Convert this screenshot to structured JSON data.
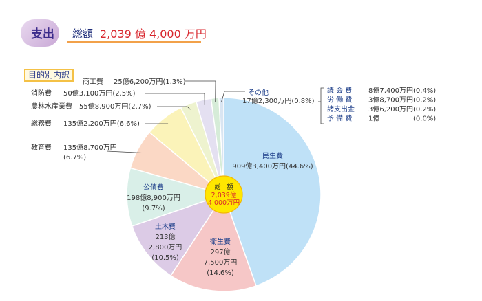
{
  "header": {
    "badge": "支出",
    "total_label": "総額",
    "total_value": "2,039 億 4,000 万円"
  },
  "section_label": "目的別内訳",
  "center_label": {
    "title": "総　額",
    "value_line1": "2,039億",
    "value_line2": "4,000万円"
  },
  "chart_data": {
    "type": "pie",
    "unit": "%",
    "slices": [
      {
        "name": "民生費",
        "value": 44.6,
        "amount": "909億3,400万円",
        "percent_text": "(44.6%)",
        "color": "#bfe1f7"
      },
      {
        "name": "衛生費",
        "value": 14.6,
        "amount": "297億7,500万円",
        "percent_text": "(14.6%)",
        "color": "#f6c7c7"
      },
      {
        "name": "土木費",
        "value": 10.5,
        "amount": "213億2,800万円",
        "percent_text": "(10.5%)",
        "color": "#dccbe6"
      },
      {
        "name": "公債費",
        "value": 9.7,
        "amount": "198億8,900万円",
        "percent_text": "(9.7%)",
        "color": "#d9efe8"
      },
      {
        "name": "教育費",
        "value": 6.7,
        "amount": "135億8,700万円",
        "percent_text": "(6.7%)",
        "color": "#fbd8c5"
      },
      {
        "name": "総務費",
        "value": 6.6,
        "amount": "135億2,200万円",
        "percent_text": "(6.6%)",
        "color": "#fbf3b9"
      },
      {
        "name": "農林水産業費",
        "value": 2.7,
        "amount": "55億8,900万円",
        "percent_text": "(2.7%)",
        "color": "#eef3cf"
      },
      {
        "name": "消防費",
        "value": 2.5,
        "amount": "50億3,100万円",
        "percent_text": "(2.5%)",
        "color": "#e4e0f1"
      },
      {
        "name": "商工費",
        "value": 1.3,
        "amount": "25億6,200万円",
        "percent_text": "(1.3%)",
        "color": "#d6ecd8"
      },
      {
        "name": "その他",
        "value": 0.8,
        "amount": "17億2,300万円",
        "percent_text": "(0.8%)",
        "color": "#d9e5f2"
      }
    ],
    "other_breakdown": [
      {
        "name": "議 会 費",
        "amount": "8億7,400万円",
        "percent_text": "(0.4%)"
      },
      {
        "name": "労 働 費",
        "amount": "3億8,700万円",
        "percent_text": "(0.2%)"
      },
      {
        "name": "諸支出金",
        "amount": "3億6,200万円",
        "percent_text": "(0.2%)"
      },
      {
        "name": "予 備 費",
        "amount": "1億",
        "percent_text": "(0.0%)"
      }
    ]
  },
  "colors": {
    "accent_red": "#d8262d",
    "title_navy": "#1e2d7a",
    "underline_orange": "#f2a14a",
    "center_yellow": "#ffe600",
    "leader": "#444444"
  }
}
